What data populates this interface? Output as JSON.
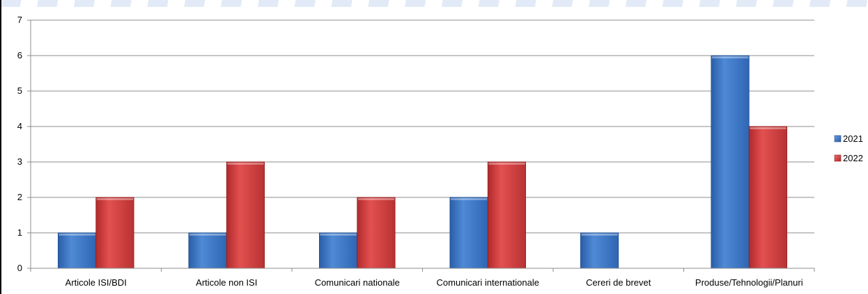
{
  "chart_data": {
    "type": "bar",
    "categories": [
      "Articole ISI/BDI",
      "Articole non ISI",
      "Comunicari nationale",
      "Comunicari internationale",
      "Cereri de brevet",
      "Produse/Tehnologii/Planuri"
    ],
    "series": [
      {
        "name": "2021",
        "values": [
          1,
          1,
          1,
          2,
          1,
          6
        ],
        "color": "#3d76c2"
      },
      {
        "name": "2022",
        "values": [
          2,
          3,
          2,
          3,
          0,
          4
        ],
        "color": "#d0393a"
      }
    ],
    "ylim": [
      0,
      7
    ],
    "yticks": [
      "0",
      "1",
      "2",
      "3",
      "4",
      "5",
      "6",
      "7"
    ],
    "grid": true,
    "legend_position": "right"
  }
}
